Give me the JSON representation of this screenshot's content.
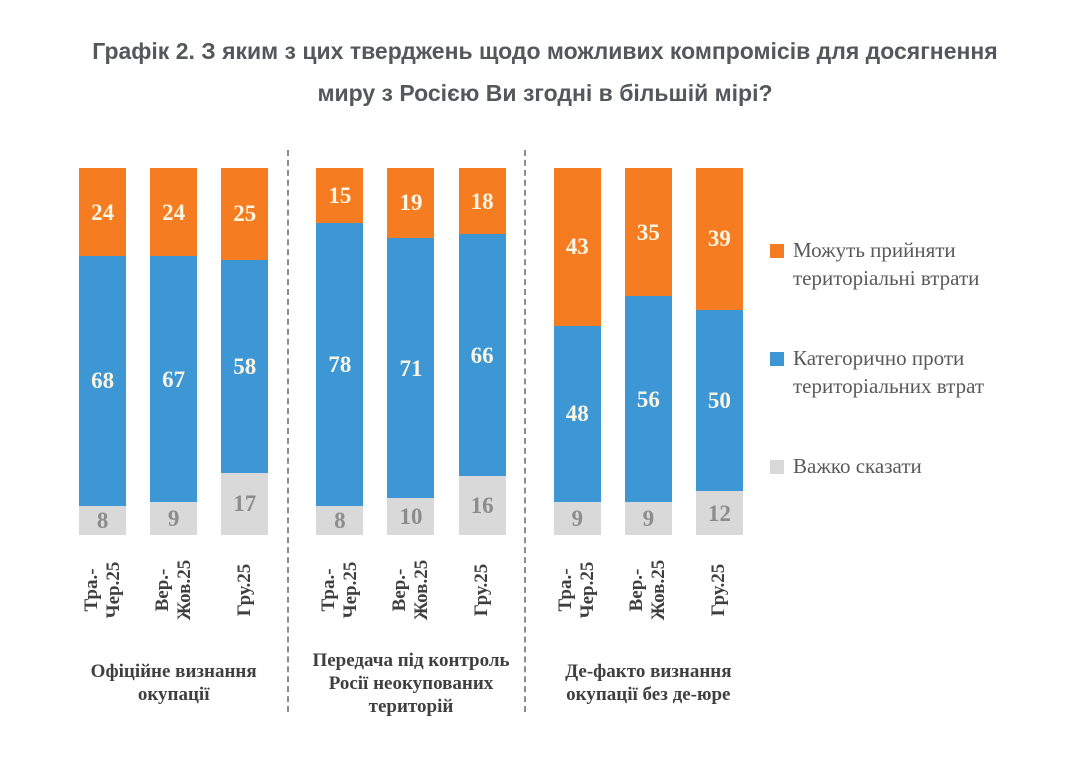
{
  "title": "Графік 2. З яким з цих тверджень щодо можливих компромісів для досягнення миру з Росією Ви згодні в більшій мірі?",
  "colors": {
    "accept_orange": "#F57C20",
    "against_blue": "#3D97D4",
    "hard_gray": "#D9D9D9",
    "value_on_color": "#FBF5E4",
    "value_on_gray": "#8C8C8C",
    "title_text": "#54585A",
    "axis_text": "#3F3F3F",
    "legend_text": "#595959",
    "divider": "#8C8C8C"
  },
  "legend": [
    {
      "label": "Можуть прийняти територіальні втрати",
      "color": "#F57C20"
    },
    {
      "label": "Категорично проти територіальних втрат",
      "color": "#3D97D4"
    },
    {
      "label": "Важко сказати",
      "color": "#D9D9D9"
    }
  ],
  "chart_data": {
    "type": "bar",
    "stacked": true,
    "percent_stacked": true,
    "ylim": [
      0,
      100
    ],
    "grid": false,
    "legend_position": "right",
    "title": "Графік 2. З яким з цих тверджень щодо можливих компромісів для досягнення миру з Росією Ви згодні в більшій мірі?",
    "categories": [
      "Тра.-Чер.25",
      "Вер.-Жов.25",
      "Гру.25"
    ],
    "category_lines": [
      [
        "Тра.-",
        "Чер.25"
      ],
      [
        "Вер.-",
        "Жов.25"
      ],
      [
        "Гру.25"
      ]
    ],
    "segments": [
      {
        "key": "hard",
        "name": "Важко сказати",
        "color": "#D9D9D9",
        "value_color": "#8C8C8C"
      },
      {
        "key": "against",
        "name": "Категорично проти територіальних втрат",
        "color": "#3D97D4",
        "value_color": "#FBF5E4"
      },
      {
        "key": "accept",
        "name": "Можуть прийняти територіальні втрати",
        "color": "#F57C20",
        "value_color": "#FBF5E4"
      }
    ],
    "groups": [
      {
        "label": "Офіційне визнання окупації",
        "label_lines": [
          "Офіційне визнання",
          "окупації"
        ],
        "bars": [
          {
            "category": "Тра.-Чер.25",
            "hard": 8,
            "against": 68,
            "accept": 24
          },
          {
            "category": "Вер.-Жов.25",
            "hard": 9,
            "against": 67,
            "accept": 24
          },
          {
            "category": "Гру.25",
            "hard": 17,
            "against": 58,
            "accept": 25
          }
        ]
      },
      {
        "label": "Передача під контроль Росії неокупованих територій",
        "label_lines": [
          "Передача під контроль",
          "Росії неокупованих",
          "територій"
        ],
        "bars": [
          {
            "category": "Тра.-Чер.25",
            "hard": 8,
            "against": 78,
            "accept": 15
          },
          {
            "category": "Вер.-Жов.25",
            "hard": 10,
            "against": 71,
            "accept": 19
          },
          {
            "category": "Гру.25",
            "hard": 16,
            "against": 66,
            "accept": 18
          }
        ]
      },
      {
        "label": "Де-факто визнання окупації без де-юре",
        "label_lines": [
          "Де-факто визнання",
          "окупації без де-юре"
        ],
        "bars": [
          {
            "category": "Тра.-Чер.25",
            "hard": 9,
            "against": 48,
            "accept": 43
          },
          {
            "category": "Вер.-Жов.25",
            "hard": 9,
            "against": 56,
            "accept": 35
          },
          {
            "category": "Гру.25",
            "hard": 12,
            "against": 50,
            "accept": 39
          }
        ]
      }
    ]
  }
}
